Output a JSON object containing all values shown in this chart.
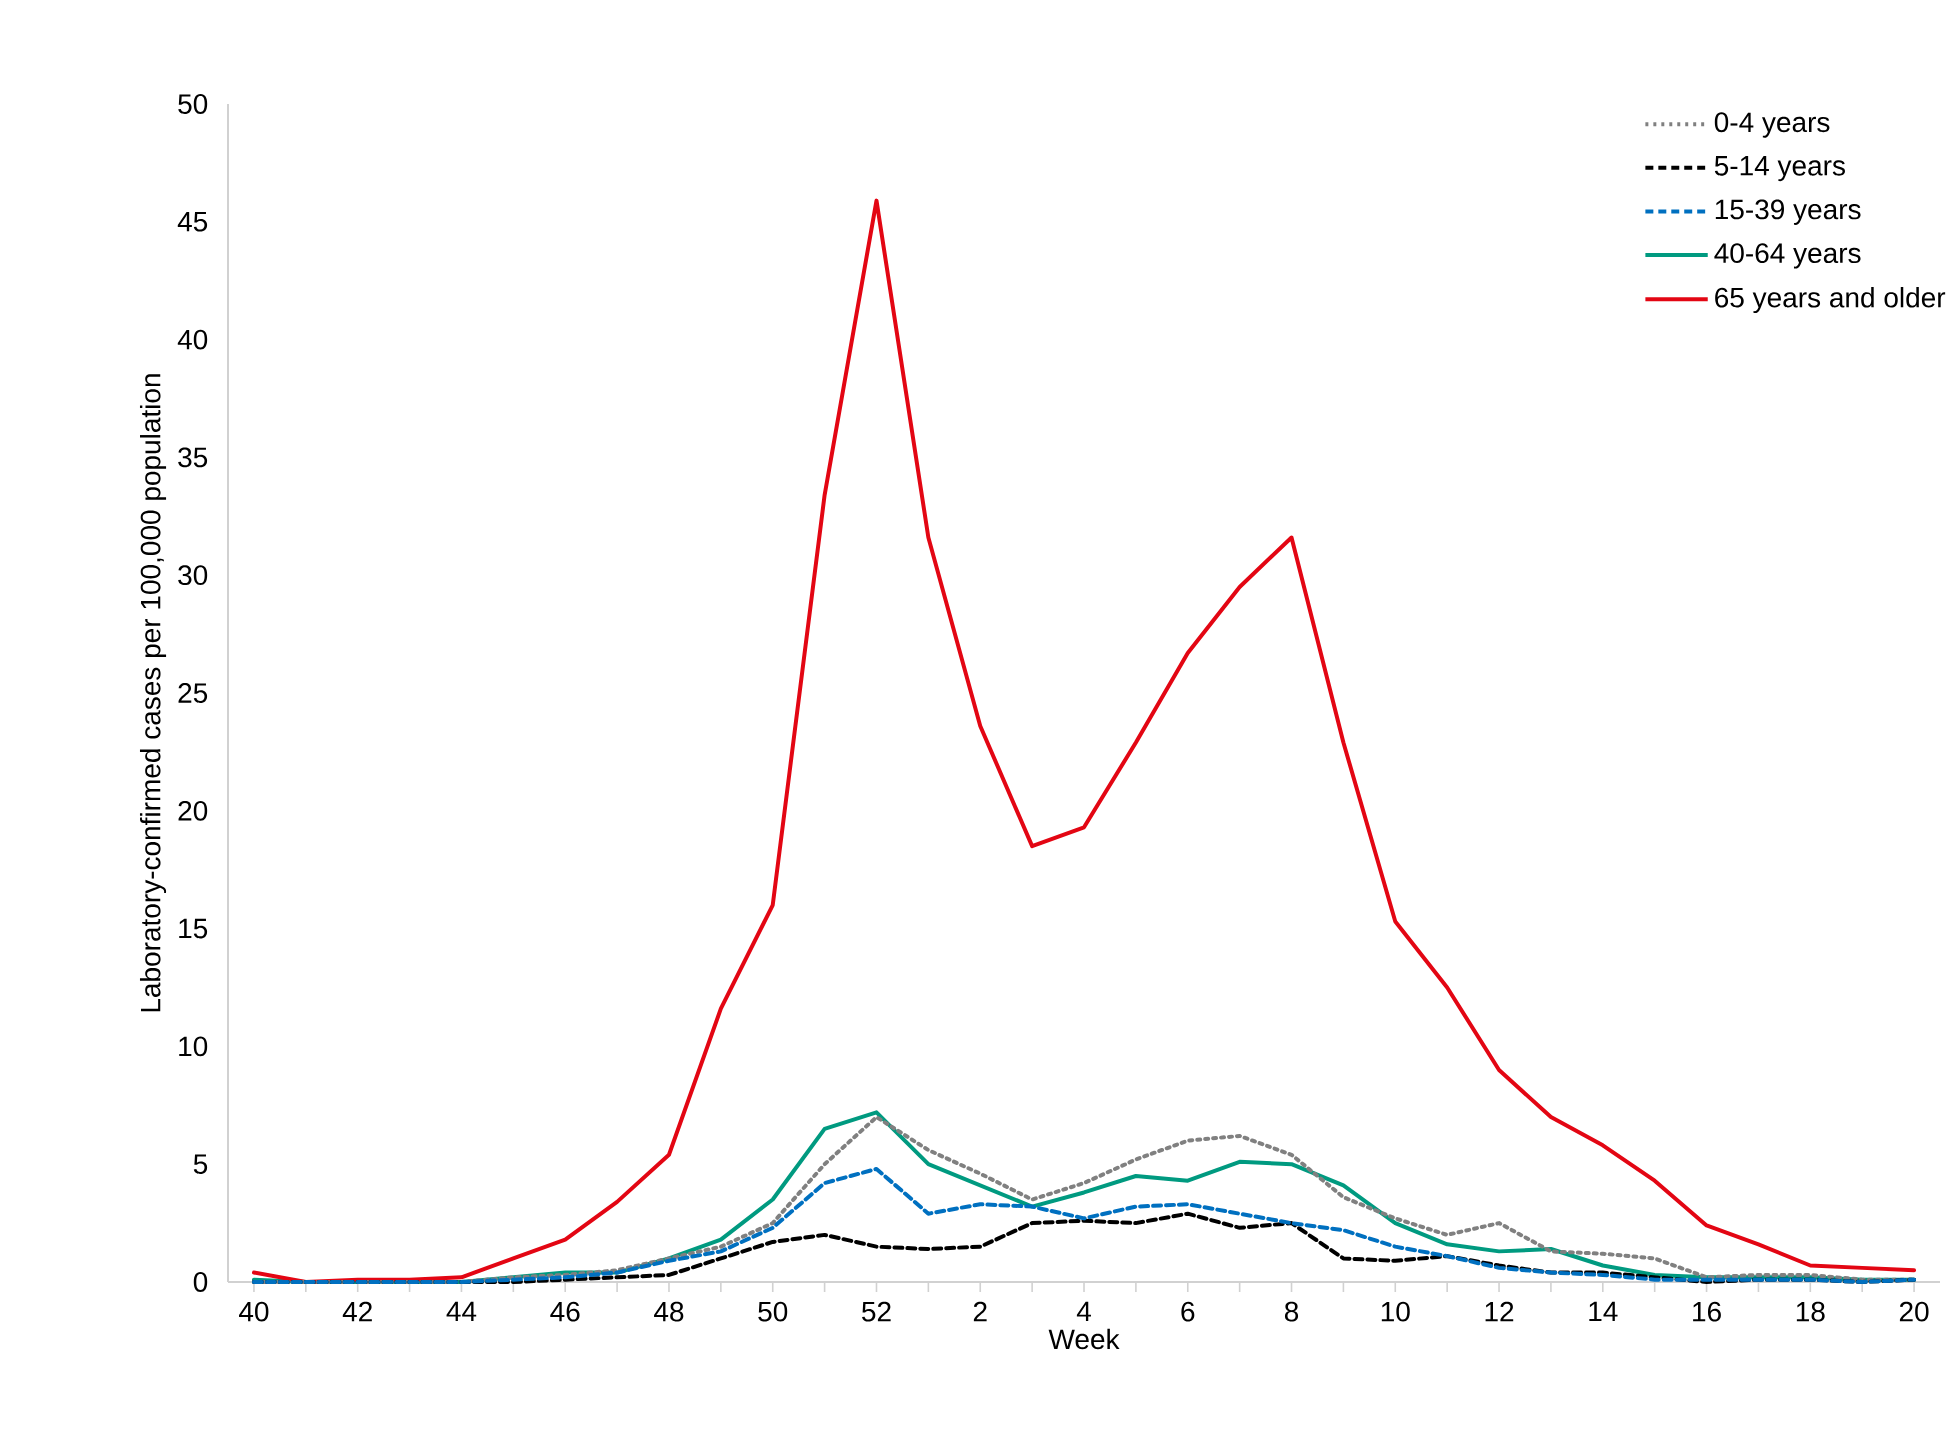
{
  "chart_data": {
    "type": "line",
    "xlabel": "Week",
    "ylabel": "Laboratory-confirmed cases per 100,000 population",
    "categories": [
      "40",
      null,
      "42",
      null,
      "44",
      null,
      "46",
      null,
      "48",
      null,
      "50",
      null,
      "52",
      null,
      "2",
      null,
      "4",
      null,
      "6",
      null,
      "8",
      null,
      "10",
      null,
      "12",
      null,
      "14",
      null,
      "16",
      null,
      "18",
      null,
      "20"
    ],
    "ylim": [
      0,
      50
    ],
    "yticks": [
      0,
      5,
      10,
      15,
      20,
      25,
      30,
      35,
      40,
      45,
      50
    ],
    "grid": false,
    "legend": "top right",
    "marker": "none",
    "series": [
      {
        "name": "0-4 years",
        "color": "#808080",
        "line_style": "dotted",
        "values": [
          0,
          0,
          0,
          0,
          0,
          0.2,
          0.3,
          0.5,
          1.0,
          1.5,
          2.5,
          5.0,
          7.0,
          5.6,
          4.6,
          3.5,
          4.2,
          5.2,
          6.0,
          6.2,
          5.4,
          3.6,
          2.7,
          2.0,
          2.5,
          1.3,
          1.2,
          1.0,
          0.2,
          0.3,
          0.3,
          0.1,
          0.1
        ]
      },
      {
        "name": "5-14 years",
        "color": "#000000",
        "line_style": "dashed",
        "values": [
          0,
          0,
          0,
          0,
          0,
          0,
          0.1,
          0.2,
          0.3,
          1.0,
          1.7,
          2.0,
          1.5,
          1.4,
          1.5,
          2.5,
          2.6,
          2.5,
          2.9,
          2.3,
          2.5,
          1.0,
          0.9,
          1.1,
          0.7,
          0.4,
          0.4,
          0.2,
          0,
          0.1,
          0.1,
          0,
          0.1
        ]
      },
      {
        "name": "15-39 years",
        "color": "#0070c0",
        "line_style": "dashed",
        "values": [
          0,
          0,
          0,
          0,
          0,
          0.1,
          0.2,
          0.4,
          0.9,
          1.3,
          2.3,
          4.2,
          4.8,
          2.9,
          3.3,
          3.2,
          2.7,
          3.2,
          3.3,
          2.9,
          2.5,
          2.2,
          1.5,
          1.1,
          0.6,
          0.4,
          0.3,
          0.1,
          0.1,
          0.1,
          0.1,
          0,
          0.1
        ]
      },
      {
        "name": "40-64 years",
        "color": "#009a80",
        "line_style": "solid",
        "values": [
          0.1,
          0,
          0,
          0,
          0,
          0.2,
          0.4,
          0.4,
          1.0,
          1.8,
          3.5,
          6.5,
          7.2,
          5.0,
          4.1,
          3.2,
          3.8,
          4.5,
          4.3,
          5.1,
          5.0,
          4.1,
          2.5,
          1.6,
          1.3,
          1.4,
          0.7,
          0.3,
          0.2,
          0.2,
          0.2,
          0.1,
          0.1
        ]
      },
      {
        "name": "65 years and older",
        "color": "#e30613",
        "line_style": "solid",
        "values": [
          0.4,
          0,
          0.1,
          0.1,
          0.2,
          1.0,
          1.8,
          3.4,
          5.4,
          11.6,
          16.0,
          33.4,
          45.9,
          31.6,
          23.6,
          18.5,
          19.3,
          22.9,
          26.7,
          29.5,
          31.6,
          22.9,
          15.3,
          12.5,
          9.0,
          7.0,
          5.8,
          4.3,
          2.4,
          1.6,
          0.7,
          0.6,
          0.5
        ]
      }
    ]
  }
}
